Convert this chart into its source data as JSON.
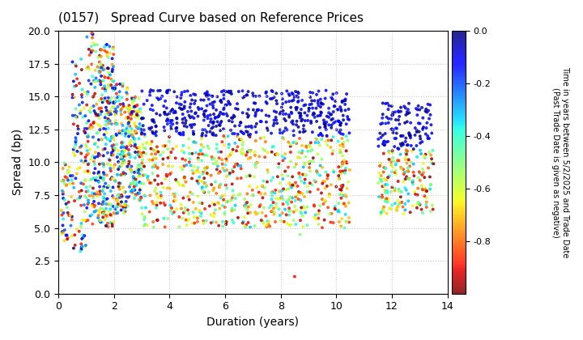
{
  "title": "(0157)   Spread Curve based on Reference Prices",
  "xlabel": "Duration (years)",
  "ylabel": "Spread (bp)",
  "colorbar_label": "Time in years between 5/2/2025 and Trade Date\n(Past Trade Date is given as negative)",
  "xlim": [
    0,
    14
  ],
  "ylim": [
    0.0,
    20.0
  ],
  "xticks": [
    0,
    2,
    4,
    6,
    8,
    10,
    12,
    14
  ],
  "yticks": [
    0.0,
    2.5,
    5.0,
    7.5,
    10.0,
    12.5,
    15.0,
    17.5,
    20.0
  ],
  "cmap": "jet_r",
  "vmin": -1.0,
  "vmax": 0.0,
  "colorbar_ticks": [
    0.0,
    -0.2,
    -0.4,
    -0.6,
    -0.8
  ],
  "background_color": "#ffffff",
  "grid_color": "#cccccc",
  "marker_size": 8,
  "seed": 42
}
